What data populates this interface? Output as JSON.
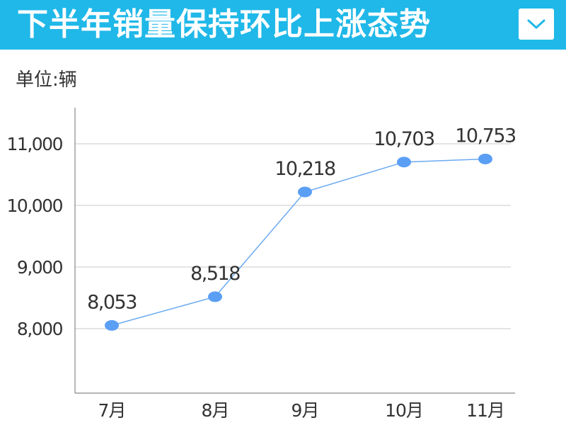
{
  "header": {
    "title": "下半年销量保持环比上涨态势",
    "dropdown_icon": "chevron-down-icon"
  },
  "colors": {
    "header_bg": "#1fb8e8",
    "line": "#6aaaf0",
    "point": "#5b9ff5",
    "grid": "#c8c8c8"
  },
  "chart_data": {
    "type": "line",
    "unit_label": "单位:辆",
    "categories": [
      "7月",
      "8月",
      "9月",
      "10月",
      "11月"
    ],
    "values": [
      8053,
      8518,
      10218,
      10703,
      10753
    ],
    "value_labels": [
      "8,053",
      "8,518",
      "10,218",
      "10,703",
      "10,753"
    ],
    "yticks": [
      8000,
      9000,
      10000,
      11000
    ],
    "ytick_labels": [
      "8,000",
      "9,000",
      "10,000",
      "11,000"
    ],
    "ylim": [
      7000,
      11400
    ],
    "grid": true,
    "title": "",
    "xlabel": "",
    "ylabel": ""
  }
}
